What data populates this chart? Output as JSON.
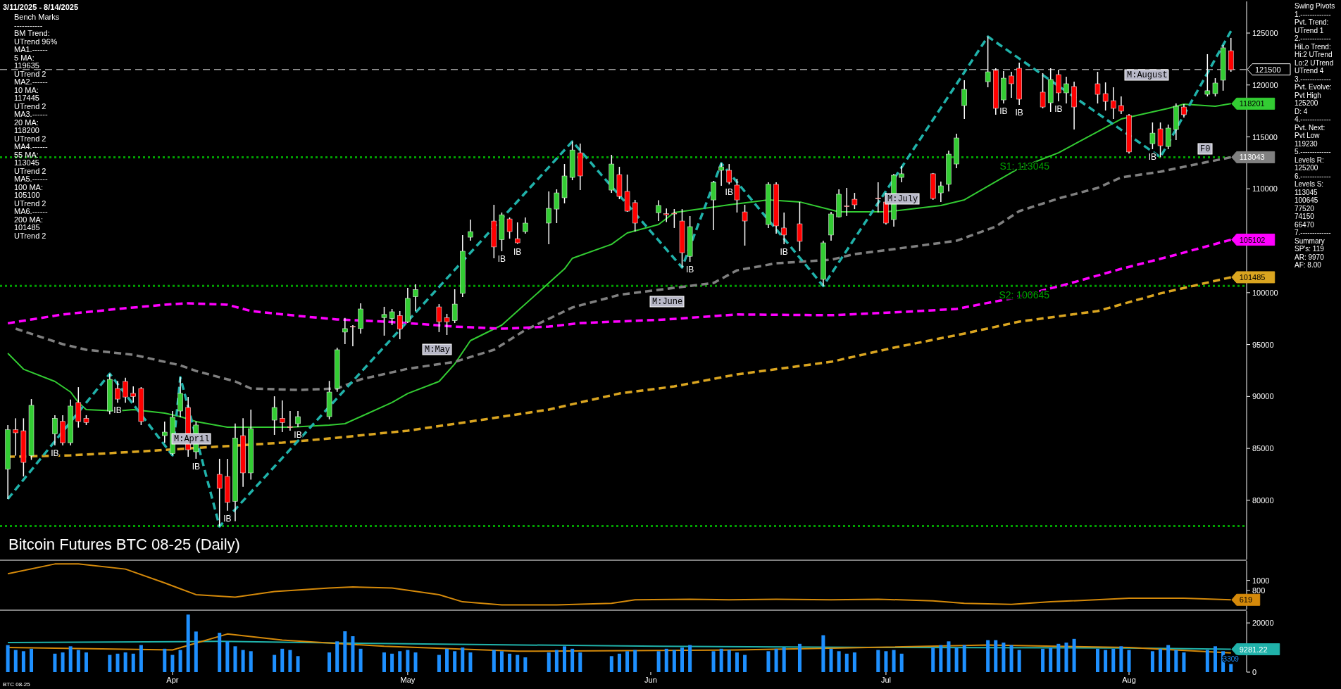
{
  "chart_data": [
    {
      "type": "candlestick",
      "title": "Bitcoin Futures BTC 08-25 (Daily)",
      "subtitle": "3/11/2025 - 8/14/2025",
      "x": [
        "2025-03-11",
        "2025-03-12",
        "2025-03-13",
        "2025-03-14",
        "2025-03-17",
        "2025-03-18",
        "2025-03-19",
        "2025-03-20",
        "2025-03-21",
        "2025-03-24",
        "2025-03-25",
        "2025-03-26",
        "2025-03-27",
        "2025-03-28",
        "2025-03-31",
        "2025-04-01",
        "2025-04-02",
        "2025-04-03",
        "2025-04-04",
        "2025-04-07",
        "2025-04-08",
        "2025-04-09",
        "2025-04-10",
        "2025-04-11",
        "2025-04-14",
        "2025-04-15",
        "2025-04-16",
        "2025-04-17",
        "2025-04-21",
        "2025-04-22",
        "2025-04-23",
        "2025-04-24",
        "2025-04-25",
        "2025-04-28",
        "2025-04-29",
        "2025-04-30",
        "2025-05-01",
        "2025-05-02",
        "2025-05-05",
        "2025-05-06",
        "2025-05-07",
        "2025-05-08",
        "2025-05-09",
        "2025-05-12",
        "2025-05-13",
        "2025-05-14",
        "2025-05-15",
        "2025-05-16",
        "2025-05-19",
        "2025-05-20",
        "2025-05-21",
        "2025-05-22",
        "2025-05-23",
        "2025-05-27",
        "2025-05-28",
        "2025-05-29",
        "2025-05-30",
        "2025-06-02",
        "2025-06-03",
        "2025-06-04",
        "2025-06-05",
        "2025-06-06",
        "2025-06-09",
        "2025-06-10",
        "2025-06-11",
        "2025-06-12",
        "2025-06-13",
        "2025-06-16",
        "2025-06-17",
        "2025-06-18",
        "2025-06-20",
        "2025-06-23",
        "2025-06-24",
        "2025-06-25",
        "2025-06-26",
        "2025-06-27",
        "2025-06-30",
        "2025-07-01",
        "2025-07-02",
        "2025-07-03",
        "2025-07-07",
        "2025-07-08",
        "2025-07-09",
        "2025-07-10",
        "2025-07-11",
        "2025-07-14",
        "2025-07-15",
        "2025-07-16",
        "2025-07-17",
        "2025-07-18",
        "2025-07-21",
        "2025-07-22",
        "2025-07-23",
        "2025-07-24",
        "2025-07-25",
        "2025-07-28",
        "2025-07-29",
        "2025-07-30",
        "2025-07-31",
        "2025-08-01",
        "2025-08-04",
        "2025-08-05",
        "2025-08-06",
        "2025-08-07",
        "2025-08-08",
        "2025-08-11",
        "2025-08-12",
        "2025-08-13",
        "2025-08-14"
      ],
      "ohlc": [
        [
          83000,
          87250,
          80130,
          86800
        ],
        [
          86800,
          87900,
          84300,
          86500
        ],
        [
          86700,
          87900,
          82300,
          83650
        ],
        [
          84300,
          89750,
          83900,
          89150
        ],
        [
          86400,
          88200,
          85300,
          87900
        ],
        [
          87600,
          88200,
          85300,
          85550
        ],
        [
          85550,
          89700,
          85300,
          89080
        ],
        [
          89420,
          90900,
          87000,
          87590
        ],
        [
          87900,
          88200,
          87250,
          87500
        ],
        [
          88600,
          92190,
          88300,
          91650
        ],
        [
          90770,
          91500,
          89400,
          89750
        ],
        [
          91450,
          91800,
          89400,
          89950
        ],
        [
          90300,
          90970,
          89420,
          90000
        ],
        [
          90770,
          90900,
          87250,
          87590
        ],
        [
          86230,
          87590,
          85550,
          86570
        ],
        [
          84500,
          88600,
          84330,
          88000
        ],
        [
          88600,
          91850,
          88000,
          90300
        ],
        [
          88940,
          89950,
          84200,
          84870
        ],
        [
          84670,
          87600,
          84000,
          87250
        ],
        [
          82500,
          84000,
          77480,
          81150
        ],
        [
          82300,
          84000,
          79000,
          79800
        ],
        [
          79900,
          87400,
          78000,
          86000
        ],
        [
          86230,
          87900,
          81300,
          82640
        ],
        [
          82640,
          88740,
          82000,
          86900
        ],
        [
          87720,
          90020,
          86300,
          88940
        ],
        [
          87900,
          89620,
          86570,
          87500
        ],
        [
          87100,
          88600,
          86700,
          87000
        ],
        [
          87380,
          88600,
          87050,
          88060
        ],
        [
          88060,
          91500,
          87800,
          90430
        ],
        [
          90770,
          94700,
          90450,
          94500
        ],
        [
          96200,
          97560,
          95040,
          96540
        ],
        [
          96750,
          96870,
          94840,
          96700
        ],
        [
          96540,
          98980,
          96060,
          98430
        ],
        [
          97600,
          98640,
          95860,
          97900
        ],
        [
          97500,
          98430,
          96870,
          98160
        ],
        [
          97800,
          98230,
          95520,
          96500
        ],
        [
          97200,
          100460,
          97070,
          99450
        ],
        [
          99600,
          100800,
          98230,
          100300
        ],
        [
          98630,
          98900,
          96200,
          97200
        ],
        [
          97600,
          97960,
          95920,
          97200
        ],
        [
          97300,
          100330,
          97070,
          98900
        ],
        [
          99930,
          105540,
          99590,
          103990
        ],
        [
          105340,
          107040,
          105000,
          105880
        ],
        [
          106900,
          108460,
          103310,
          104400
        ],
        [
          105100,
          107720,
          103990,
          107500
        ],
        [
          107100,
          107240,
          105200,
          105880
        ],
        [
          105200,
          106770,
          104700,
          104800
        ],
        [
          105880,
          107240,
          105680,
          106700
        ],
        [
          106700,
          109750,
          104660,
          108120
        ],
        [
          108050,
          109950,
          106700,
          109610
        ],
        [
          109140,
          112390,
          108600,
          111240
        ],
        [
          111100,
          114560,
          110830,
          113740
        ],
        [
          113470,
          114350,
          109880,
          111240
        ],
        [
          109880,
          113270,
          109610,
          112390
        ],
        [
          111370,
          112120,
          109000,
          109270
        ],
        [
          109750,
          111370,
          107780,
          107850
        ],
        [
          108670,
          108940,
          105880,
          106700
        ],
        [
          107700,
          108900,
          106900,
          108400
        ],
        [
          107600,
          108100,
          106800,
          107500
        ],
        [
          107650,
          108050,
          106230,
          107580
        ],
        [
          106900,
          108050,
          102430,
          103850
        ],
        [
          103500,
          107380,
          102970,
          106360
        ],
        [
          108930,
          110770,
          106020,
          110630
        ],
        [
          111780,
          112460,
          110290,
          112120
        ],
        [
          111780,
          112390,
          110430,
          110630
        ],
        [
          110360,
          110970,
          107720,
          108930
        ],
        [
          107780,
          108460,
          104530,
          106900
        ],
        [
          106560,
          110630,
          106230,
          110430
        ],
        [
          110430,
          110630,
          105680,
          106430
        ],
        [
          106230,
          107720,
          104660,
          105550
        ],
        [
          106630,
          108730,
          103990,
          104940
        ],
        [
          101280,
          105000,
          100645,
          104800
        ],
        [
          105550,
          107780,
          105000,
          107580
        ],
        [
          107300,
          109950,
          107240,
          109480
        ],
        [
          108350,
          110090,
          107380,
          108300
        ],
        [
          109000,
          109610,
          108050,
          108460
        ],
        [
          109100,
          110630,
          107720,
          109070
        ],
        [
          108730,
          109610,
          106560,
          106700
        ],
        [
          107040,
          111450,
          106360,
          111310
        ],
        [
          111100,
          112190,
          110630,
          111450
        ],
        [
          111450,
          111520,
          108940,
          109070
        ],
        [
          109610,
          110700,
          108730,
          110290
        ],
        [
          110430,
          113680,
          109750,
          113340
        ],
        [
          112390,
          115310,
          111990,
          114900
        ],
        [
          118020,
          120460,
          116730,
          119580
        ],
        [
          120320,
          124660,
          119780,
          121270
        ],
        [
          121410,
          121610,
          117140,
          117750
        ],
        [
          118560,
          121340,
          118220,
          120660
        ],
        [
          120870,
          121270,
          118760,
          120120
        ],
        [
          121610,
          122150,
          118090,
          118630
        ],
        [
          119310,
          121140,
          117750,
          117880
        ],
        [
          118290,
          121610,
          117410,
          120530
        ],
        [
          121000,
          121470,
          118420,
          119240
        ],
        [
          119240,
          120800,
          118220,
          120120
        ],
        [
          119850,
          120320,
          115710,
          117880
        ],
        [
          120120,
          121270,
          118220,
          119100
        ],
        [
          119170,
          120250,
          117540,
          118420
        ],
        [
          118490,
          119780,
          116730,
          117750
        ],
        [
          118020,
          118900,
          117200,
          117480
        ],
        [
          117070,
          117200,
          113400,
          113550
        ],
        [
          114350,
          116390,
          113820,
          115370
        ],
        [
          115780,
          116390,
          113045,
          114150
        ],
        [
          114080,
          116190,
          113820,
          115850
        ],
        [
          115710,
          118220,
          114700,
          117950
        ],
        [
          117880,
          118160,
          116870,
          117140
        ],
        [
          119100,
          122970,
          118900,
          119450
        ],
        [
          119170,
          120660,
          118900,
          120190
        ],
        [
          120460,
          123850,
          119450,
          123580
        ],
        [
          123300,
          124530,
          121270,
          121470
        ]
      ],
      "xlim": [
        "2025-03-10",
        "2025-08-16"
      ],
      "ylim": [
        74300,
        128050
      ],
      "yticks": [
        80000,
        85000,
        90000,
        95000,
        100000,
        110000,
        115000,
        120000,
        125000
      ],
      "tick_labels": "y",
      "series": [
        {
          "type": "line",
          "color": "#33cc33",
          "line_style": "solid",
          "x": [
            "2025-03-11",
            "2025-03-13",
            "2025-03-17",
            "2025-03-19",
            "2025-03-20",
            "2025-03-21",
            "2025-03-25",
            "2025-03-27",
            "2025-03-31",
            "2025-04-02",
            "2025-04-04",
            "2025-04-08",
            "2025-04-16",
            "2025-04-21",
            "2025-04-23",
            "2025-04-25",
            "2025-04-29",
            "2025-05-01",
            "2025-05-05",
            "2025-05-07",
            "2025-05-09",
            "2025-05-13",
            "2025-05-15",
            "2025-05-19",
            "2025-05-21",
            "2025-05-22",
            "2025-05-27",
            "2025-05-29",
            "2025-06-02",
            "2025-06-04",
            "2025-06-11",
            "2025-06-16",
            "2025-06-20",
            "2025-06-25",
            "2025-07-01",
            "2025-07-08",
            "2025-07-11",
            "2025-07-18",
            "2025-07-23",
            "2025-07-28",
            "2025-07-31",
            "2025-08-04",
            "2025-08-06",
            "2025-08-08",
            "2025-08-12",
            "2025-08-14"
          ],
          "values": [
            94160,
            92630,
            91450,
            90430,
            89420,
            88740,
            88600,
            88740,
            88400,
            88060,
            87590,
            87040,
            87040,
            87250,
            87380,
            88060,
            89420,
            90290,
            91450,
            93140,
            95380,
            96870,
            98230,
            100930,
            102290,
            103310,
            104660,
            105750,
            106560,
            107720,
            108460,
            108940,
            108740,
            107780,
            107780,
            108400,
            108940,
            112000,
            113470,
            115510,
            116730,
            117410,
            117750,
            118160,
            117950,
            118201
          ],
          "value_labels": [
            null,
            null,
            null,
            null,
            null,
            null,
            null,
            null,
            null,
            null,
            null,
            null,
            null,
            null,
            null,
            null,
            null,
            null,
            null,
            null,
            null,
            null,
            null,
            null,
            null,
            null,
            null,
            null,
            null,
            null,
            null,
            null,
            null,
            null,
            null,
            null,
            null,
            null,
            null,
            null,
            null,
            null,
            null,
            null,
            null,
            "118201"
          ]
        },
        {
          "type": "line",
          "color": "#808080",
          "line_style": "dashed",
          "x": [
            "2025-03-12",
            "2025-03-18",
            "2025-03-21",
            "2025-03-27",
            "2025-04-02",
            "2025-04-04",
            "2025-04-09",
            "2025-04-11",
            "2025-04-17",
            "2025-04-22",
            "2025-04-25",
            "2025-05-01",
            "2025-05-07",
            "2025-05-12",
            "2025-05-16",
            "2025-05-22",
            "2025-05-28",
            "2025-06-04",
            "2025-06-09",
            "2025-06-12",
            "2025-06-17",
            "2025-06-24",
            "2025-06-27",
            "2025-07-02",
            "2025-07-10",
            "2025-07-15",
            "2025-07-18",
            "2025-07-23",
            "2025-07-28",
            "2025-07-31",
            "2025-08-05",
            "2025-08-08",
            "2025-08-14"
          ],
          "values": [
            96530,
            95040,
            94500,
            94020,
            93000,
            92460,
            91450,
            90770,
            90630,
            90770,
            91650,
            92670,
            93340,
            94500,
            96400,
            98570,
            99790,
            100460,
            100930,
            102150,
            102830,
            103170,
            103720,
            104190,
            105000,
            106360,
            107850,
            109070,
            110090,
            111100,
            111650,
            112120,
            113043
          ],
          "value_labels": [
            null,
            null,
            null,
            null,
            null,
            null,
            null,
            null,
            null,
            null,
            null,
            null,
            null,
            null,
            null,
            null,
            null,
            null,
            null,
            null,
            null,
            null,
            null,
            null,
            null,
            null,
            null,
            null,
            null,
            null,
            null,
            null,
            "113043"
          ]
        },
        {
          "type": "line",
          "color": "#ff00ff",
          "line_style": "dashed",
          "x": [
            "2025-03-11",
            "2025-03-18",
            "2025-03-25",
            "2025-03-31",
            "2025-04-03",
            "2025-04-08",
            "2025-04-11",
            "2025-04-17",
            "2025-04-22",
            "2025-04-28",
            "2025-05-01",
            "2025-05-07",
            "2025-05-13",
            "2025-05-19",
            "2025-05-23",
            "2025-06-03",
            "2025-06-12",
            "2025-06-24",
            "2025-07-02",
            "2025-07-10",
            "2025-07-17",
            "2025-07-24",
            "2025-07-31",
            "2025-08-07",
            "2025-08-14"
          ],
          "values": [
            97050,
            97900,
            98430,
            98840,
            98980,
            98840,
            98230,
            97760,
            97420,
            97210,
            97070,
            96730,
            96530,
            96730,
            97070,
            97420,
            97900,
            97830,
            98100,
            98430,
            99450,
            100800,
            102290,
            103650,
            105102
          ],
          "value_labels": [
            null,
            null,
            null,
            null,
            null,
            null,
            null,
            null,
            null,
            null,
            null,
            null,
            null,
            null,
            null,
            null,
            null,
            null,
            null,
            null,
            null,
            null,
            null,
            null,
            "105102"
          ]
        },
        {
          "type": "line",
          "color": "#daa520",
          "line_style": "dashed",
          "x": [
            "2025-03-11",
            "2025-03-19",
            "2025-03-27",
            "2025-04-15",
            "2025-04-22",
            "2025-05-01",
            "2025-05-09",
            "2025-05-19",
            "2025-05-28",
            "2025-06-04",
            "2025-06-12",
            "2025-06-24",
            "2025-07-02",
            "2025-07-11",
            "2025-07-18",
            "2025-07-28",
            "2025-08-05",
            "2025-08-14"
          ],
          "values": [
            84190,
            84330,
            84670,
            85550,
            86030,
            86710,
            87590,
            88740,
            90290,
            90970,
            92130,
            93340,
            94700,
            96060,
            97210,
            98230,
            99930,
            101485
          ],
          "value_labels": [
            null,
            null,
            null,
            null,
            null,
            null,
            null,
            null,
            null,
            null,
            null,
            null,
            null,
            null,
            null,
            null,
            null,
            "101485"
          ]
        },
        {
          "type": "line",
          "color": "#20b2aa",
          "line_style": "dashed",
          "x": [
            "2025-03-11",
            "2025-03-24",
            "2025-04-01",
            "2025-04-02",
            "2025-04-07",
            "2025-05-22",
            "2025-06-05",
            "2025-06-10",
            "2025-06-23",
            "2025-07-14",
            "2025-08-05",
            "2025-08-14"
          ],
          "values": [
            80130,
            92190,
            84330,
            91850,
            77480,
            114560,
            102430,
            112460,
            100645,
            124660,
            113045,
            125200
          ]
        }
      ],
      "ref_lines": [
        {
          "axis": "y",
          "value": 121500,
          "label": "121500",
          "color": "#999999",
          "line_style": "dashed"
        },
        {
          "axis": "y",
          "value": 113045,
          "label": "S1: 113045",
          "color": "#00a000",
          "line_style": "dotted"
        },
        {
          "axis": "y",
          "value": 100645,
          "label": "S2: 100645",
          "color": "#00a000",
          "line_style": "dotted"
        },
        {
          "axis": "y",
          "value": 77520,
          "color": "#00a000",
          "line_style": "dotted"
        }
      ],
      "annotations": [
        "Bench Marks\n-----------\nBM Trend:\nUTrend 96%\nMA1.------\n5 MA:\n119635\nUTrend 2\nMA2.------\n10 MA:\n117445\nUTrend 2\nMA3.------\n20 MA:\n118200\nUTrend 2\nMA4.------\n55 MA:\n113045\nUTrend 2\nMA5.------\n100 MA:\n105100\nUTrend 2\nMA6.------\n200 MA:\n101485\nUTrend 2",
        "Swing Pivots\n1.-------------\nPvt. Trend:\nUTrend 1\n2.-------------\nHiLo Trend:\nHi:2 UTrend\nLo:2 UTrend\nUTrend 4\n3.-------------\nPvt. Evolve:\nPvt High\n125200\nD: 4\n4.-------------\nPvt. Next:\nPvt Low\n119230\n5.-------------\nLevels R:\n125200\n6.-------------\nLevels S:\n113045\n100645\n77520\n74150\n66470\n7.-------------\nSummary\nSP's: 119\nAR: 9970\nAF: 8.00",
        "M:April",
        "M:May",
        "M:June",
        "M:July",
        "M:August",
        "F0",
        {
          "text": "IB",
          "x": "2025-03-17",
          "y": 85300
        },
        {
          "text": "IB",
          "x": "2025-03-25",
          "y": 89400
        },
        {
          "text": "IB",
          "x": "2025-04-04",
          "y": 84000
        },
        {
          "text": "IB",
          "x": "2025-04-08",
          "y": 79000
        },
        {
          "text": "IB",
          "x": "2025-04-17",
          "y": 87050
        },
        {
          "text": "IB",
          "x": "2025-05-13",
          "y": 103990
        },
        {
          "text": "IB",
          "x": "2025-05-15",
          "y": 104700
        },
        {
          "text": "IB",
          "x": "2025-06-06",
          "y": 102970
        },
        {
          "text": "IB",
          "x": "2025-06-11",
          "y": 110430
        },
        {
          "text": "IB",
          "x": "2025-06-18",
          "y": 104660
        },
        {
          "text": "IB",
          "x": "2025-07-16",
          "y": 118220
        },
        {
          "text": "IB",
          "x": "2025-07-18",
          "y": 118090
        },
        {
          "text": "IB",
          "x": "2025-07-23",
          "y": 118420
        },
        {
          "text": "IB",
          "x": "2025-08-04",
          "y": 113820
        }
      ]
    },
    {
      "type": "line",
      "xlim": [
        "2025-03-10",
        "2025-08-16"
      ],
      "ylim": [
        430,
        1380
      ],
      "yticks": [
        800,
        1000
      ],
      "tick_labels": "y",
      "series": [
        {
          "color": "#d4890a",
          "x": [
            "2025-03-11",
            "2025-03-17",
            "2025-03-20",
            "2025-03-26",
            "2025-03-31",
            "2025-04-04",
            "2025-04-09",
            "2025-04-14",
            "2025-04-21",
            "2025-04-24",
            "2025-04-29",
            "2025-05-05",
            "2025-05-08",
            "2025-05-13",
            "2025-05-20",
            "2025-05-27",
            "2025-05-30",
            "2025-06-06",
            "2025-06-11",
            "2025-06-17",
            "2025-06-24",
            "2025-06-30",
            "2025-07-07",
            "2025-07-11",
            "2025-07-17",
            "2025-07-22",
            "2025-08-01",
            "2025-08-08",
            "2025-08-14"
          ],
          "values": [
            1130,
            1320,
            1320,
            1220,
            950,
            720,
            670,
            780,
            850,
            870,
            850,
            720,
            580,
            520,
            520,
            550,
            620,
            630,
            620,
            630,
            620,
            630,
            600,
            550,
            530,
            580,
            650,
            650,
            619
          ],
          "value_labels": [
            null,
            null,
            null,
            null,
            null,
            null,
            null,
            null,
            null,
            null,
            null,
            null,
            null,
            null,
            null,
            null,
            null,
            null,
            null,
            null,
            null,
            null,
            null,
            null,
            null,
            null,
            null,
            null,
            "619"
          ]
        }
      ]
    },
    {
      "type": "bar",
      "color": "#1e90ff",
      "xlim": [
        "2025-03-10",
        "2025-08-16"
      ],
      "ylim": [
        0,
        24900
      ],
      "yticks": [
        0,
        20000
      ],
      "xticks": [
        {
          "value": "2025-04-01",
          "label": "Apr"
        },
        {
          "value": "2025-05-01",
          "label": "May"
        },
        {
          "value": "2025-06-01",
          "label": "Jun"
        },
        {
          "value": "2025-07-01",
          "label": "Jul"
        },
        {
          "value": "2025-08-01",
          "label": "Aug"
        }
      ],
      "x": [
        "2025-03-11",
        "2025-03-12",
        "2025-03-13",
        "2025-03-14",
        "2025-03-17",
        "2025-03-18",
        "2025-03-19",
        "2025-03-20",
        "2025-03-21",
        "2025-03-24",
        "2025-03-25",
        "2025-03-26",
        "2025-03-27",
        "2025-03-28",
        "2025-03-31",
        "2025-04-01",
        "2025-04-02",
        "2025-04-03",
        "2025-04-04",
        "2025-04-07",
        "2025-04-08",
        "2025-04-09",
        "2025-04-10",
        "2025-04-11",
        "2025-04-14",
        "2025-04-15",
        "2025-04-16",
        "2025-04-17",
        "2025-04-21",
        "2025-04-22",
        "2025-04-23",
        "2025-04-24",
        "2025-04-25",
        "2025-04-28",
        "2025-04-29",
        "2025-04-30",
        "2025-05-01",
        "2025-05-02",
        "2025-05-05",
        "2025-05-06",
        "2025-05-07",
        "2025-05-08",
        "2025-05-09",
        "2025-05-12",
        "2025-05-13",
        "2025-05-14",
        "2025-05-15",
        "2025-05-16",
        "2025-05-19",
        "2025-05-20",
        "2025-05-21",
        "2025-05-22",
        "2025-05-23",
        "2025-05-27",
        "2025-05-28",
        "2025-05-29",
        "2025-05-30",
        "2025-06-02",
        "2025-06-03",
        "2025-06-04",
        "2025-06-05",
        "2025-06-06",
        "2025-06-09",
        "2025-06-10",
        "2025-06-11",
        "2025-06-12",
        "2025-06-13",
        "2025-06-16",
        "2025-06-17",
        "2025-06-18",
        "2025-06-20",
        "2025-06-23",
        "2025-06-24",
        "2025-06-25",
        "2025-06-26",
        "2025-06-27",
        "2025-06-30",
        "2025-07-01",
        "2025-07-02",
        "2025-07-03",
        "2025-07-07",
        "2025-07-08",
        "2025-07-09",
        "2025-07-10",
        "2025-07-11",
        "2025-07-14",
        "2025-07-15",
        "2025-07-16",
        "2025-07-17",
        "2025-07-18",
        "2025-07-21",
        "2025-07-22",
        "2025-07-23",
        "2025-07-24",
        "2025-07-25",
        "2025-07-28",
        "2025-07-29",
        "2025-07-30",
        "2025-07-31",
        "2025-08-01",
        "2025-08-04",
        "2025-08-05",
        "2025-08-06",
        "2025-08-07",
        "2025-08-08",
        "2025-08-11",
        "2025-08-12",
        "2025-08-13",
        "2025-08-14"
      ],
      "values": [
        11000,
        9000,
        8500,
        9500,
        7500,
        8000,
        10500,
        9000,
        8000,
        7000,
        7500,
        8000,
        7500,
        11000,
        9500,
        7000,
        9000,
        23400,
        16500,
        16000,
        12500,
        10500,
        9000,
        8500,
        7000,
        9500,
        9000,
        6500,
        8000,
        12500,
        16600,
        14600,
        9500,
        8000,
        7500,
        8500,
        9000,
        8000,
        7000,
        9500,
        8500,
        10000,
        8000,
        9000,
        8500,
        7500,
        7000,
        6000,
        8000,
        9000,
        10500,
        9500,
        8000,
        6500,
        7500,
        8500,
        9000,
        8500,
        9500,
        9000,
        10000,
        11000,
        8500,
        9500,
        9000,
        8000,
        7000,
        8500,
        9500,
        10000,
        11500,
        15000,
        9500,
        8500,
        7500,
        8000,
        9000,
        8500,
        9000,
        7500,
        10000,
        11000,
        12500,
        10000,
        11000,
        13000,
        13000,
        12000,
        11000,
        9000,
        9500,
        10000,
        11500,
        12000,
        13500,
        9500,
        9000,
        9500,
        10500,
        9000,
        8500,
        9500,
        11000,
        9000,
        8000,
        9000,
        10500,
        8500,
        3309
      ],
      "value_labels": [
        null,
        null,
        null,
        null,
        null,
        null,
        null,
        null,
        null,
        null,
        null,
        null,
        null,
        null,
        null,
        null,
        null,
        null,
        null,
        null,
        null,
        null,
        null,
        null,
        null,
        null,
        null,
        null,
        null,
        null,
        null,
        null,
        null,
        null,
        null,
        null,
        null,
        null,
        null,
        null,
        null,
        null,
        null,
        null,
        null,
        null,
        null,
        null,
        null,
        null,
        null,
        null,
        null,
        null,
        null,
        null,
        null,
        null,
        null,
        null,
        null,
        null,
        null,
        null,
        null,
        null,
        null,
        null,
        null,
        null,
        null,
        null,
        null,
        null,
        null,
        null,
        null,
        null,
        null,
        null,
        null,
        null,
        null,
        null,
        null,
        null,
        null,
        null,
        null,
        null,
        null,
        null,
        null,
        null,
        null,
        null,
        null,
        null,
        null,
        null,
        null,
        null,
        null,
        null,
        null,
        null,
        null,
        null,
        "3309"
      ],
      "series": [
        {
          "type": "line",
          "color": "#20b2aa",
          "x": [
            "2025-03-11",
            "2025-04-07",
            "2025-05-01",
            "2025-06-02",
            "2025-07-01",
            "2025-08-01",
            "2025-08-14"
          ],
          "values": [
            12000,
            12500,
            11500,
            10500,
            10000,
            9800,
            9281.22
          ],
          "value_labels": [
            null,
            null,
            null,
            null,
            null,
            null,
            "9281.22"
          ]
        },
        {
          "type": "line",
          "color": "#d4890a",
          "x": [
            "2025-03-11",
            "2025-04-01",
            "2025-04-08",
            "2025-04-15",
            "2025-04-28",
            "2025-05-15",
            "2025-06-12",
            "2025-07-14",
            "2025-08-01",
            "2025-08-14"
          ],
          "values": [
            10000,
            9000,
            15500,
            13000,
            10500,
            8500,
            9000,
            11000,
            10000,
            7800
          ]
        }
      ],
      "annotations": [
        "BTC 08-25"
      ]
    }
  ]
}
